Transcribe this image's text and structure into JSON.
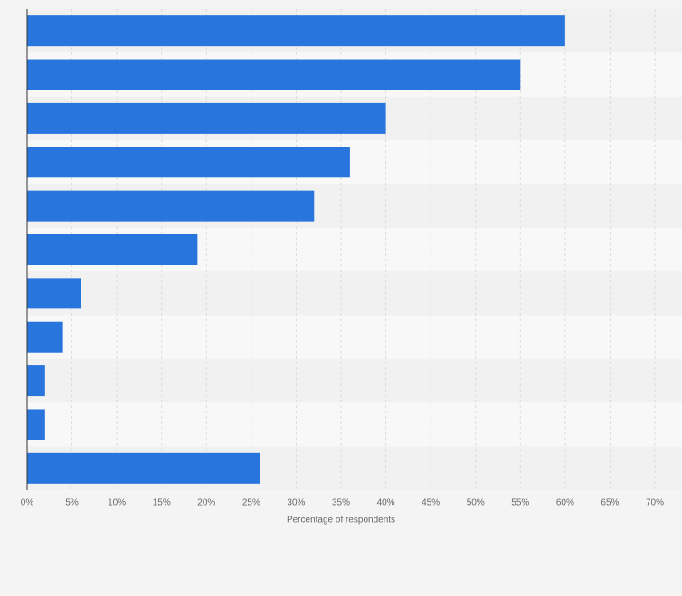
{
  "chart_data": {
    "type": "hbar",
    "x_label": "Percentage of respondents",
    "categories": [
      null,
      null,
      null,
      null,
      null,
      null,
      null,
      null,
      null,
      null,
      null
    ],
    "values": [
      60,
      55,
      40,
      36,
      32,
      19,
      6,
      4,
      2,
      2,
      26
    ],
    "color": "#2876dd",
    "xlim": [
      0,
      70
    ],
    "xticks": [
      {
        "value": 0,
        "label": "0%"
      },
      {
        "value": 5,
        "label": "5%"
      },
      {
        "value": 10,
        "label": "10%"
      },
      {
        "value": 15,
        "label": "15%"
      },
      {
        "value": 20,
        "label": "20%"
      },
      {
        "value": 25,
        "label": "25%"
      },
      {
        "value": 30,
        "label": "30%"
      },
      {
        "value": 35,
        "label": "35%"
      },
      {
        "value": 40,
        "label": "40%"
      },
      {
        "value": 45,
        "label": "45%"
      },
      {
        "value": 50,
        "label": "50%"
      },
      {
        "value": 55,
        "label": "55%"
      },
      {
        "value": 60,
        "label": "60%"
      },
      {
        "value": 65,
        "label": "65%"
      },
      {
        "value": 70,
        "label": "70%"
      }
    ],
    "grid": true
  }
}
